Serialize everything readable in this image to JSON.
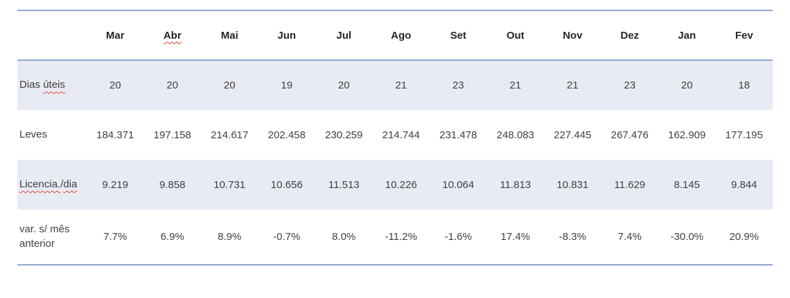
{
  "table": {
    "corner_label": "",
    "months": [
      {
        "text": "Mar",
        "misspelled": false
      },
      {
        "text": "Abr",
        "misspelled": true
      },
      {
        "text": "Mai",
        "misspelled": false
      },
      {
        "text": "Jun",
        "misspelled": false
      },
      {
        "text": "Jul",
        "misspelled": false
      },
      {
        "text": "Ago",
        "misspelled": false
      },
      {
        "text": "Set",
        "misspelled": false
      },
      {
        "text": "Out",
        "misspelled": false
      },
      {
        "text": "Nov",
        "misspelled": false
      },
      {
        "text": "Dez",
        "misspelled": false
      },
      {
        "text": "Jan",
        "misspelled": false
      },
      {
        "text": "Fev",
        "misspelled": false
      }
    ],
    "rows": [
      {
        "label_segments": [
          {
            "text": "Dias ",
            "misspelled": false
          },
          {
            "text": "úteis",
            "misspelled": true
          }
        ],
        "shaded": true,
        "tall": false,
        "values": [
          "20",
          "20",
          "20",
          "19",
          "20",
          "21",
          "23",
          "21",
          "21",
          "23",
          "20",
          "18"
        ]
      },
      {
        "label_segments": [
          {
            "text": "Leves",
            "misspelled": false
          }
        ],
        "shaded": false,
        "tall": false,
        "values": [
          "184.371",
          "197.158",
          "214.617",
          "202.458",
          "230.259",
          "214.744",
          "231.478",
          "248.083",
          "227.445",
          "267.476",
          "162.909",
          "177.195"
        ]
      },
      {
        "label_segments": [
          {
            "text": "Licencia.",
            "misspelled": true
          },
          {
            "text": "/",
            "misspelled": false
          },
          {
            "text": "dia",
            "misspelled": true
          }
        ],
        "shaded": true,
        "tall": false,
        "values": [
          "9.219",
          "9.858",
          "10.731",
          "10.656",
          "11.513",
          "10.226",
          "10.064",
          "11.813",
          "10.831",
          "11.629",
          "8.145",
          "9.844"
        ]
      },
      {
        "label_segments": [
          {
            "text": "var. s/ mês anterior",
            "misspelled": false
          }
        ],
        "shaded": false,
        "tall": true,
        "values": [
          "7.7%",
          "6.9%",
          "8.9%",
          "-0.7%",
          "8.0%",
          "-11.2%",
          "-1.6%",
          "17.4%",
          "-8.3%",
          "7.4%",
          "-30.0%",
          "20.9%"
        ]
      }
    ]
  },
  "colors": {
    "border_blue": "#8CA6D1",
    "row_shade": "#E9EBF4",
    "squiggle_red": "#E0462E",
    "text": "#3F3F3F"
  }
}
